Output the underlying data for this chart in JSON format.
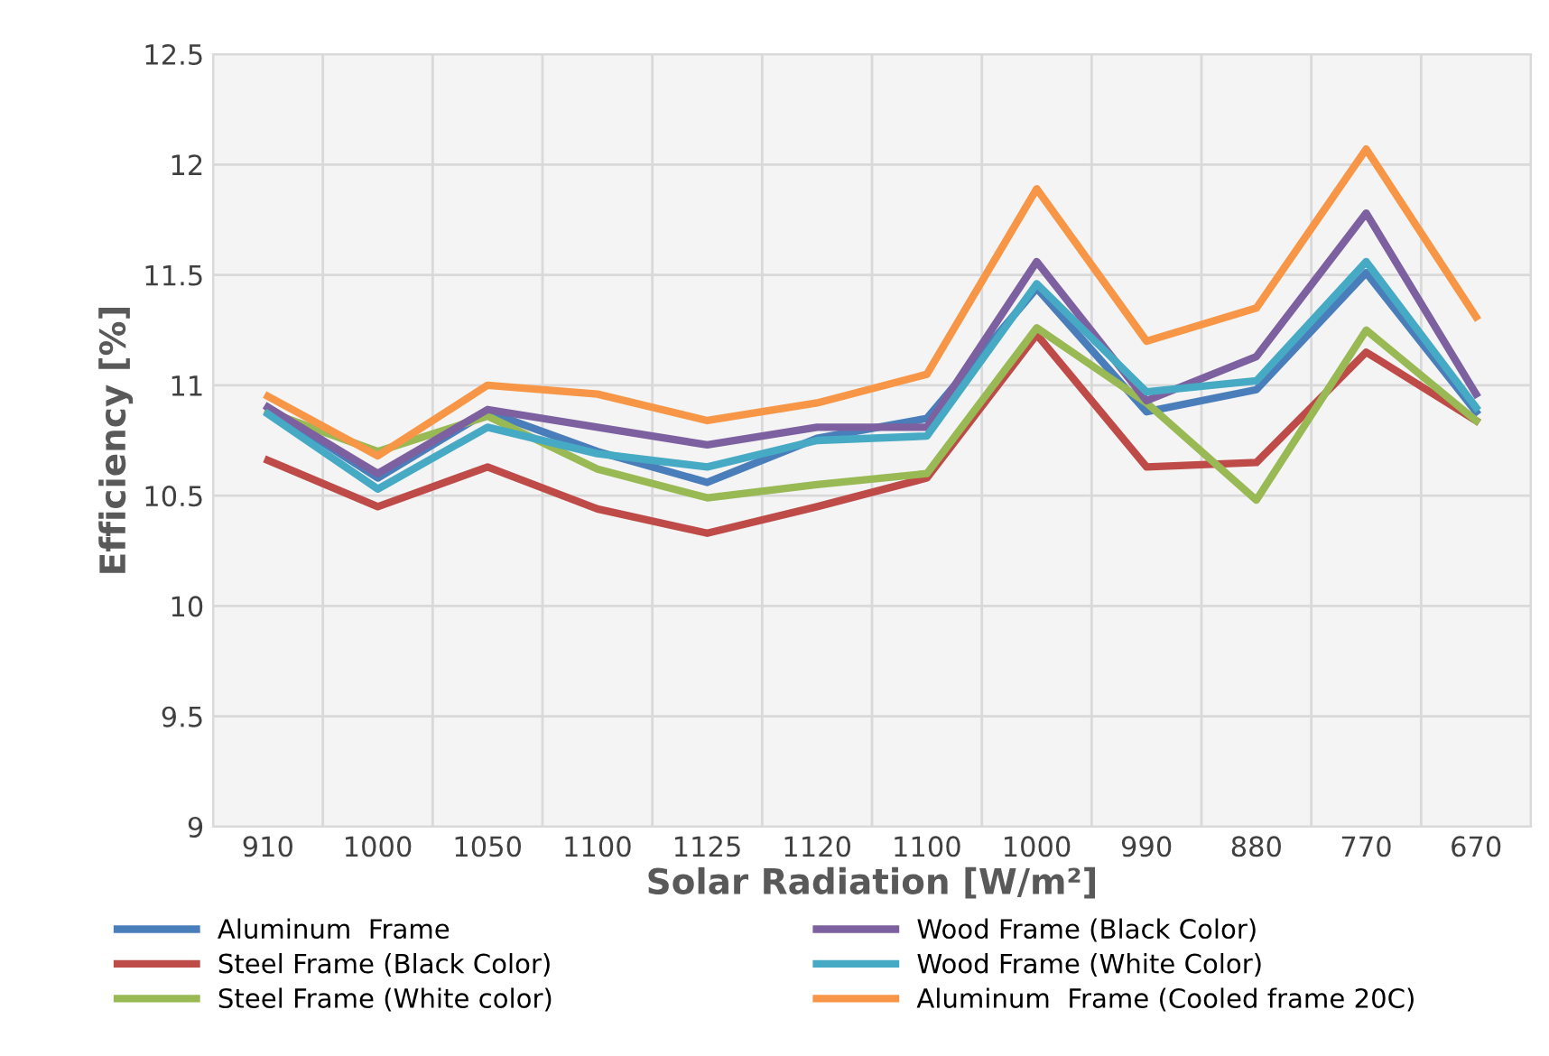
{
  "chart_data": {
    "type": "line",
    "xlabel": "Solar Radiation [W/m²]",
    "ylabel": "Efficiency [%]",
    "categories": [
      "910",
      "1000",
      "1050",
      "1100",
      "1125",
      "1120",
      "1100",
      "1000",
      "990",
      "880",
      "770",
      "670"
    ],
    "series": [
      {
        "name": "Aluminum  Frame",
        "color": "#4a7ebb",
        "values": [
          10.9,
          10.58,
          10.88,
          10.7,
          10.56,
          10.76,
          10.85,
          11.44,
          10.88,
          10.98,
          11.51,
          10.88
        ]
      },
      {
        "name": "Steel Frame (Black Color)",
        "color": "#be4b48",
        "values": [
          10.66,
          10.45,
          10.63,
          10.44,
          10.33,
          10.45,
          10.58,
          11.23,
          10.63,
          10.65,
          11.15,
          10.84
        ]
      },
      {
        "name": "Steel Frame (White color)",
        "color": "#98b954",
        "values": [
          10.88,
          10.7,
          10.86,
          10.62,
          10.49,
          10.55,
          10.6,
          11.26,
          10.92,
          10.48,
          11.25,
          10.84
        ]
      },
      {
        "name": "Wood Frame (Black Color)",
        "color": "#7d60a0",
        "values": [
          10.9,
          10.6,
          10.89,
          10.81,
          10.73,
          10.81,
          10.81,
          11.56,
          10.93,
          11.13,
          11.78,
          10.96
        ]
      },
      {
        "name": "Wood Frame (White Color)",
        "color": "#46aac5",
        "values": [
          10.87,
          10.53,
          10.81,
          10.69,
          10.63,
          10.75,
          10.77,
          11.46,
          10.97,
          11.02,
          11.56,
          10.9
        ]
      },
      {
        "name": "Aluminum  Frame (Cooled frame 20C)",
        "color": "#f79646",
        "values": [
          10.95,
          10.68,
          11.0,
          10.96,
          10.84,
          10.92,
          11.05,
          11.89,
          11.2,
          11.35,
          12.07,
          11.31
        ]
      }
    ],
    "ylim": [
      9,
      12.5
    ],
    "yticks": [
      9,
      9.5,
      10,
      10.5,
      11,
      11.5,
      12,
      12.5
    ],
    "grid": true,
    "legend": "bottom",
    "marker": "none",
    "line_style": "solid"
  }
}
